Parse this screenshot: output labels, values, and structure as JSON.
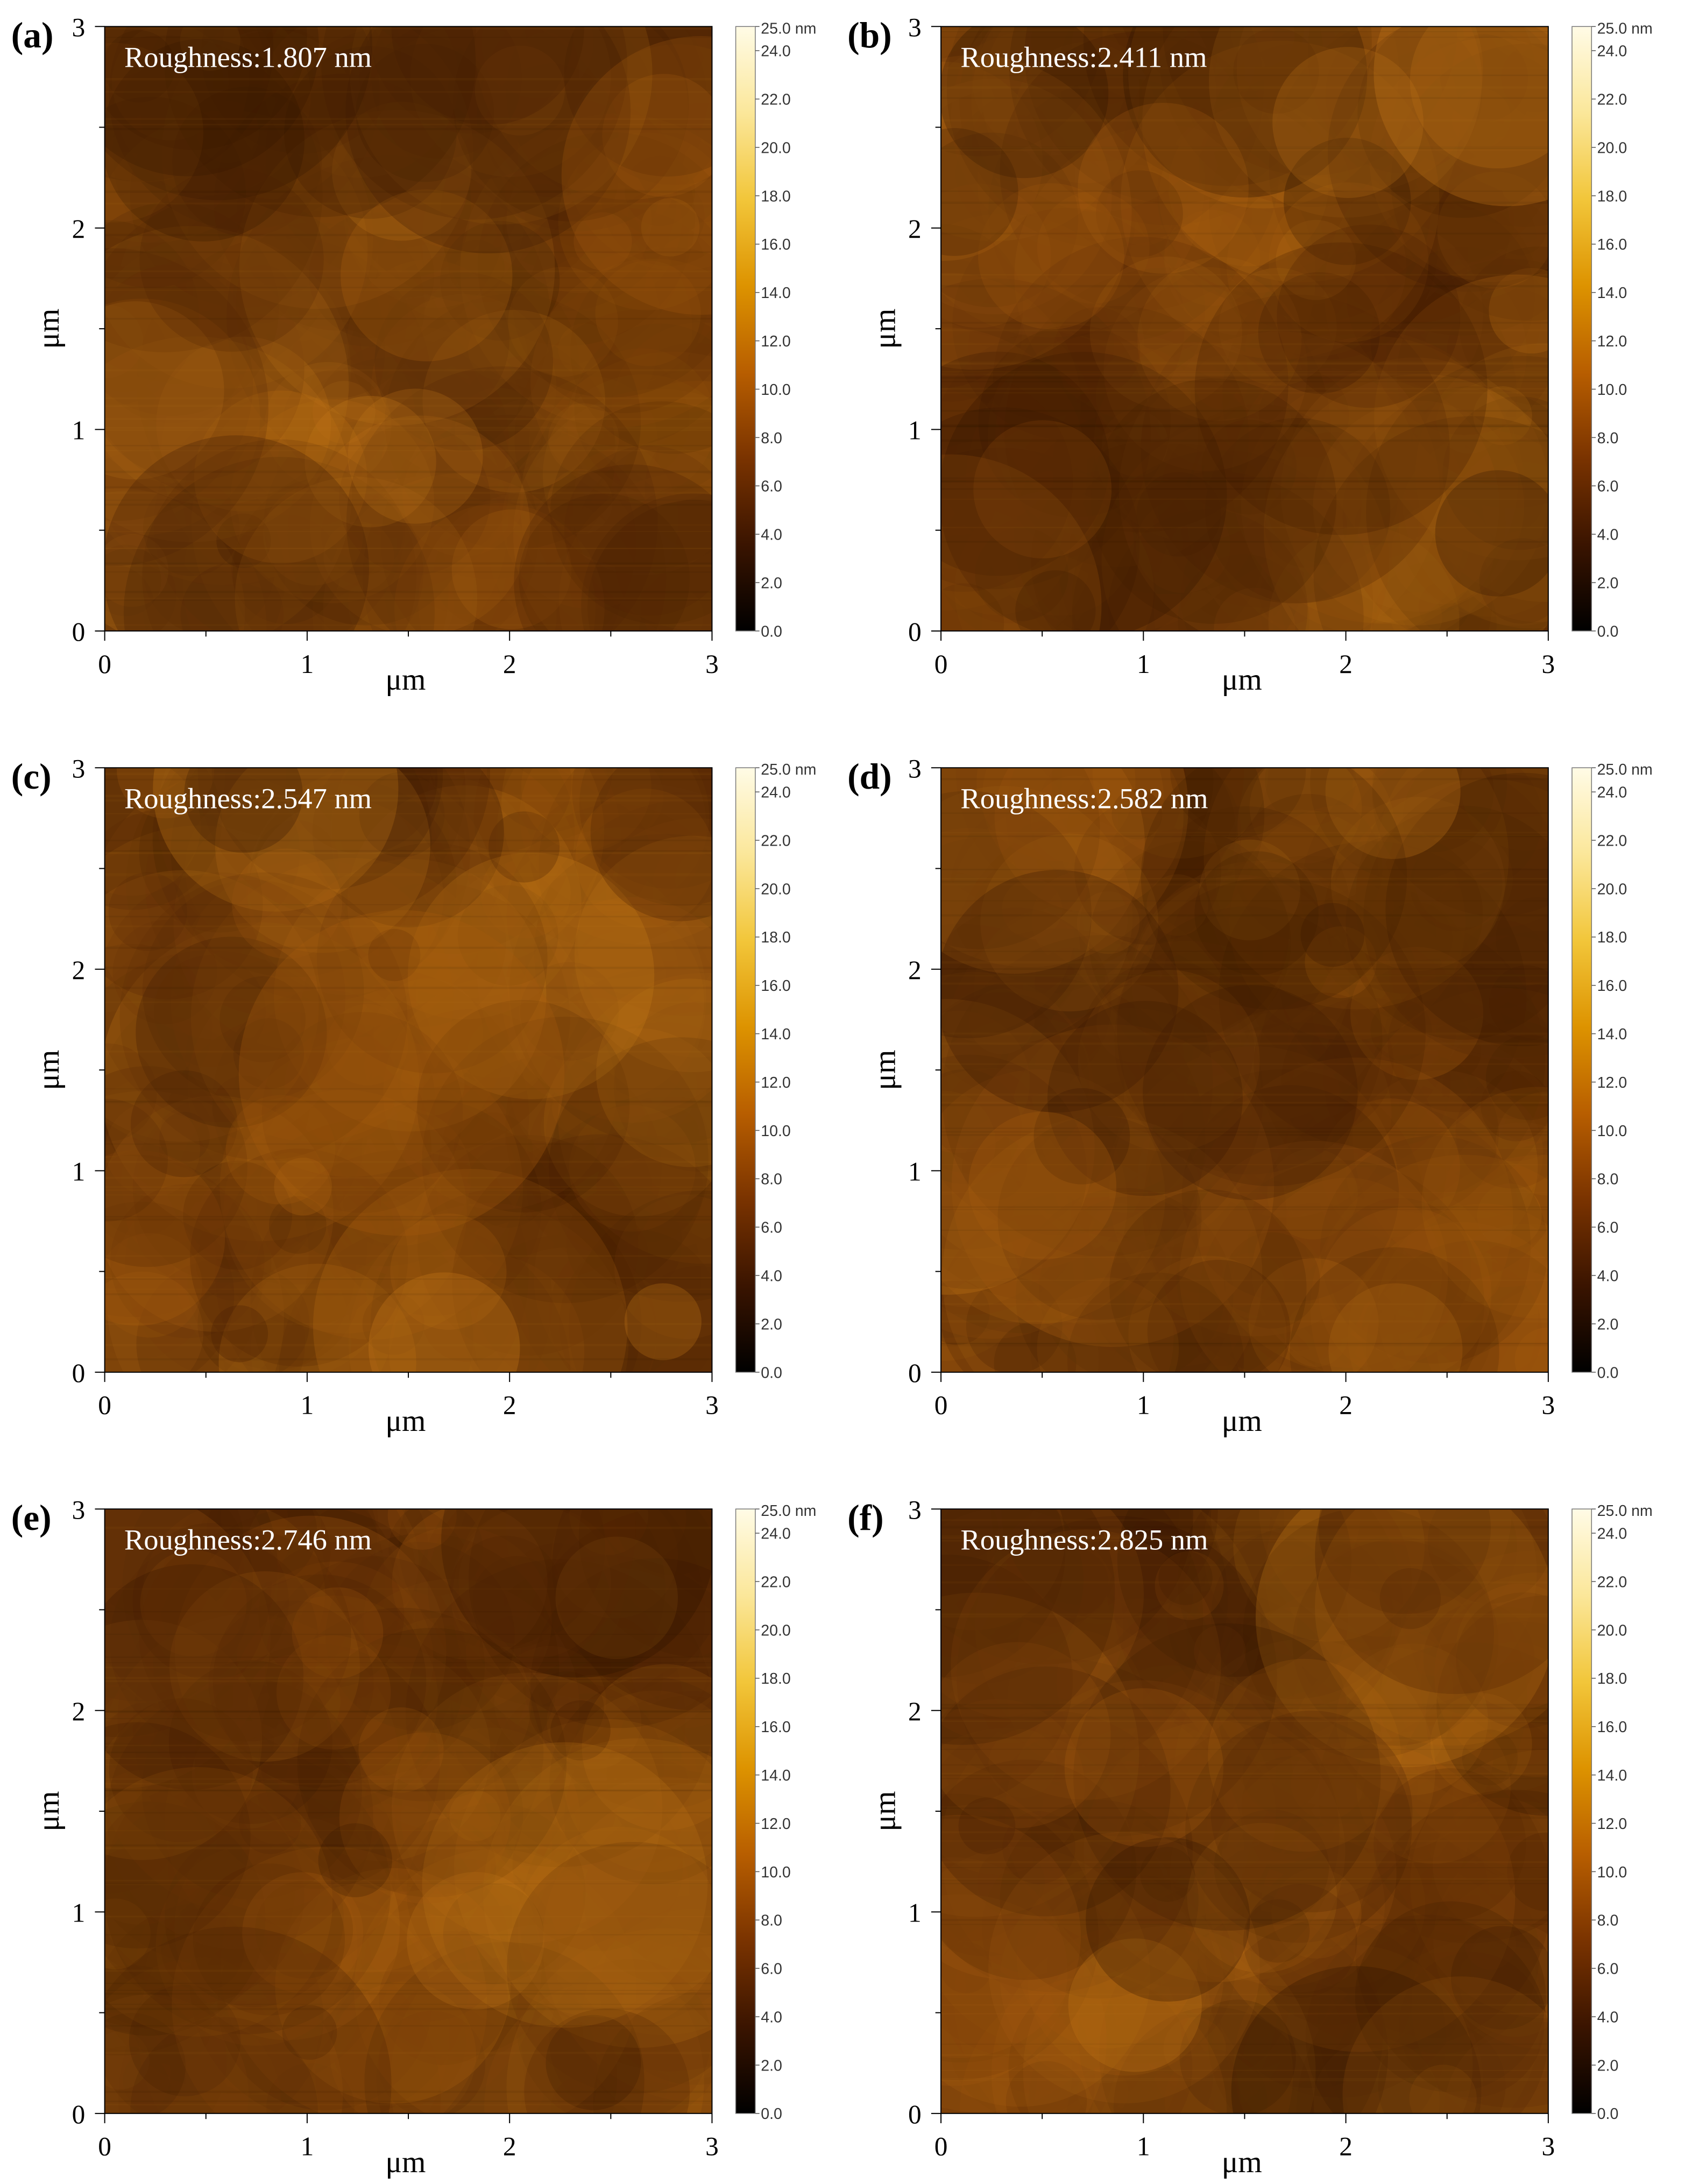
{
  "figure": {
    "axis_unit_label": "μm",
    "x_ticks": [
      "0",
      "1",
      "2",
      "3"
    ],
    "y_ticks": [
      "0",
      "1",
      "2",
      "3"
    ],
    "colorbar": {
      "top_label": "25.0 nm",
      "ticks": [
        "24.0",
        "22.0",
        "20.0",
        "18.0",
        "16.0",
        "14.0",
        "12.0",
        "10.0",
        "8.0",
        "6.0",
        "4.0",
        "2.0",
        "0.0"
      ],
      "colors": [
        "#000000",
        "#3a1400",
        "#7a3300",
        "#b85e00",
        "#dd9300",
        "#f2c63a",
        "#fbe79a",
        "#fffbe6"
      ]
    },
    "panels": [
      {
        "label": "(a)",
        "roughness_text": "Roughness:1.807 nm",
        "roughness_nm": 1.807,
        "mean_color": "#6b3508"
      },
      {
        "label": "(b)",
        "roughness_text": "Roughness:2.411 nm",
        "roughness_nm": 2.411,
        "mean_color": "#7a3f08"
      },
      {
        "label": "(c)",
        "roughness_text": "Roughness:2.547 nm",
        "roughness_nm": 2.547,
        "mean_color": "#6e3808"
      },
      {
        "label": "(d)",
        "roughness_text": "Roughness:2.582 nm",
        "roughness_nm": 2.582,
        "mean_color": "#6a3507"
      },
      {
        "label": "(e)",
        "roughness_text": "Roughness:2.746 nm",
        "roughness_nm": 2.746,
        "mean_color": "#87490c"
      },
      {
        "label": "(f)",
        "roughness_text": "Roughness:2.825 nm",
        "roughness_nm": 2.825,
        "mean_color": "#703a08"
      }
    ]
  }
}
